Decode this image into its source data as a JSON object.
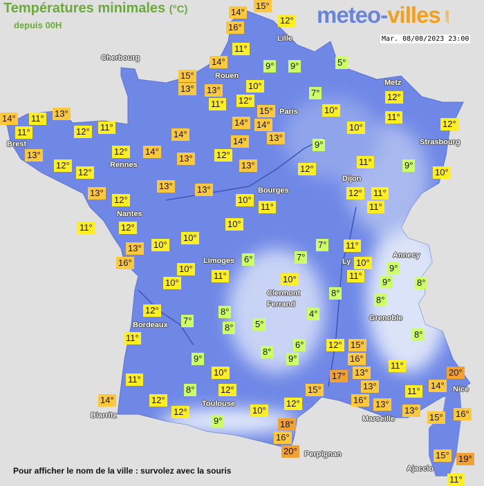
{
  "header": {
    "title": "Températures minimales",
    "title_unit": "(°C)",
    "subtitle": "depuis 00H",
    "logo_part1": "meteo-",
    "logo_part2": "villes",
    "logo_suffix": ".com",
    "datetime": "Mar. 08/08/2023 23:00"
  },
  "footer": {
    "hint": "Pour afficher le nom de la ville : survolez avec la souris"
  },
  "colors": {
    "sea": "#e1e0e1",
    "land": "#6f88e6",
    "cold": "#ccff66",
    "mild": "#ffee22",
    "warm": "#fdc83c",
    "hot": "#f2a030"
  },
  "cities": [
    "Lille",
    "Cherbourg",
    "Rouen",
    "Paris",
    "Metz",
    "Strasbourg",
    "Brest",
    "Rennes",
    "Dijon",
    "Bourges",
    "Nantes",
    "Limoges",
    "Annecy",
    "Ly",
    "Clermont\nFerrand",
    "Grenoble",
    "Bordeaux",
    "Nice",
    "Toulouse",
    "Marseille",
    "Biarritz",
    "Perpignan",
    "Ajaccio"
  ],
  "temperatures": [
    14,
    15,
    16,
    12,
    11,
    14,
    9,
    9,
    5,
    15,
    13,
    13,
    10,
    12,
    11,
    7,
    12,
    15,
    10,
    14,
    14,
    11,
    13,
    10,
    12,
    13,
    14,
    11,
    11,
    12,
    11,
    14,
    14,
    9,
    13,
    12,
    14,
    12,
    13,
    12,
    12,
    13,
    12,
    11,
    9,
    10,
    13,
    13,
    13,
    12,
    12,
    11,
    11,
    10,
    11,
    11,
    12,
    10,
    10,
    13,
    10,
    16,
    10,
    10,
    11,
    7,
    11,
    6,
    7,
    10,
    11,
    9,
    9,
    8,
    10,
    8,
    8,
    4,
    5,
    8,
    8,
    7,
    12,
    11,
    8,
    6,
    9,
    12,
    15,
    16,
    8,
    9,
    10,
    17,
    13,
    11,
    20,
    14,
    11,
    8,
    12,
    13,
    16,
    13,
    11,
    15,
    12,
    10,
    14,
    12,
    12,
    9,
    13,
    15,
    16,
    18,
    16,
    20,
    15,
    19,
    11
  ]
}
